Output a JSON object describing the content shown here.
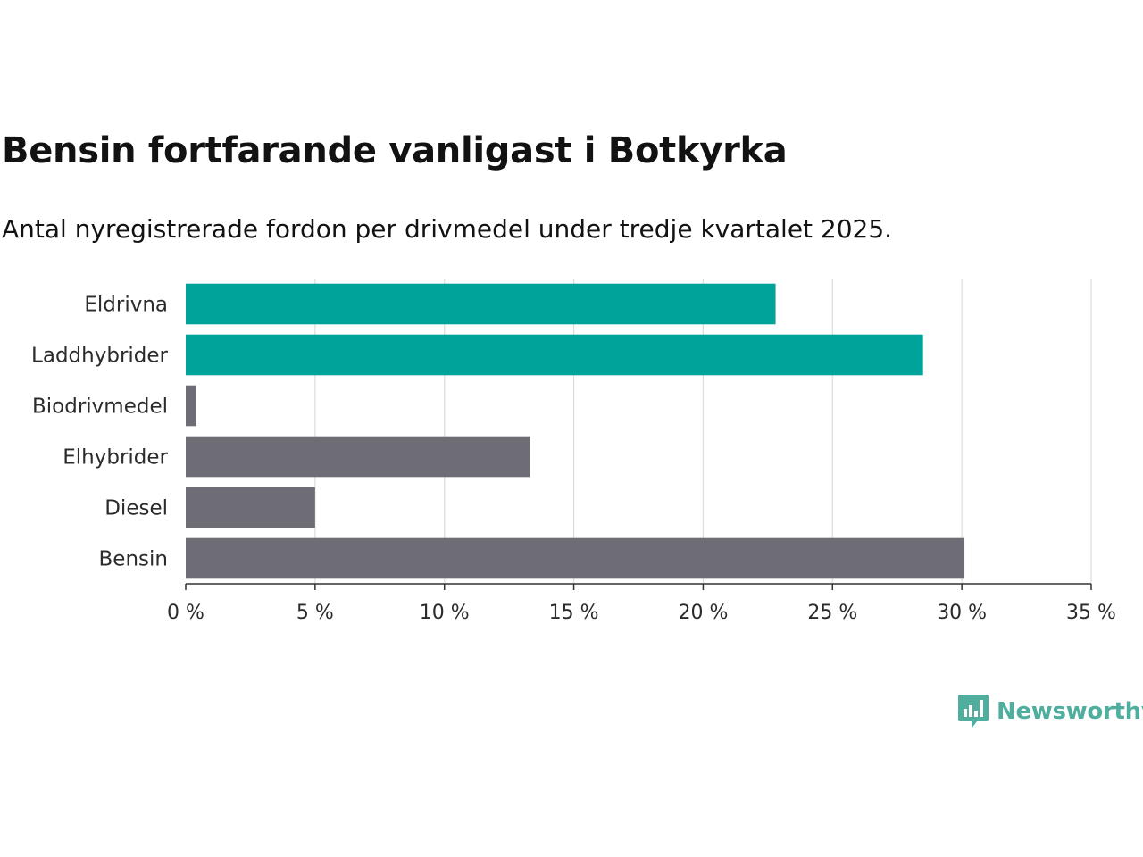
{
  "title": "Bensin fortfarande vanligast i Botkyrka",
  "subtitle": "Antal nyregistrerade fordon per drivmedel under tredje kvartalet 2025.",
  "brand": {
    "name": "Newsworthy"
  },
  "colors": {
    "highlight": "#00a39a",
    "default": "#6e6d75",
    "grid": "#dcdcdc",
    "axis": "#333333",
    "brand": "#4fae9e"
  },
  "chart_data": {
    "type": "bar",
    "orientation": "horizontal",
    "categories": [
      "Eldrivna",
      "Laddhybrider",
      "Biodrivmedel",
      "Elhybrider",
      "Diesel",
      "Bensin"
    ],
    "values": [
      22.8,
      28.5,
      0.4,
      13.3,
      5.0,
      30.1
    ],
    "highlighted": [
      true,
      true,
      false,
      false,
      false,
      false
    ],
    "xlim": [
      0,
      35
    ],
    "xticks": [
      0,
      5,
      10,
      15,
      20,
      25,
      30,
      35
    ],
    "tick_suffix": " %",
    "xlabel": "",
    "ylabel": "",
    "grid": true
  }
}
